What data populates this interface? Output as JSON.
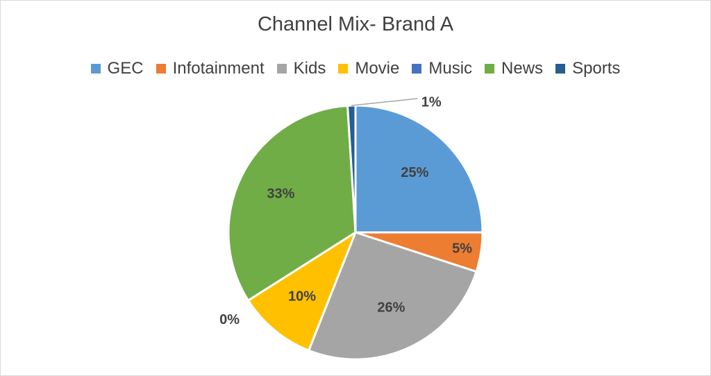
{
  "chart_data": {
    "type": "pie",
    "title": "Channel Mix- Brand A",
    "legend_position": "top",
    "slices": [
      {
        "name": "GEC",
        "value": 25,
        "label": "25%",
        "color": "#5B9BD5"
      },
      {
        "name": "Infotainment",
        "value": 5,
        "label": "5%",
        "color": "#ED7D31"
      },
      {
        "name": "Kids",
        "value": 26,
        "label": "26%",
        "color": "#A5A5A5"
      },
      {
        "name": "Movie",
        "value": 10,
        "label": "10%",
        "color": "#FFC000"
      },
      {
        "name": "Music",
        "value": 0,
        "label": "0%",
        "color": "#4472C4"
      },
      {
        "name": "News",
        "value": 33,
        "label": "33%",
        "color": "#70AD47"
      },
      {
        "name": "Sports",
        "value": 1,
        "label": "1%",
        "color": "#255E91"
      }
    ]
  }
}
